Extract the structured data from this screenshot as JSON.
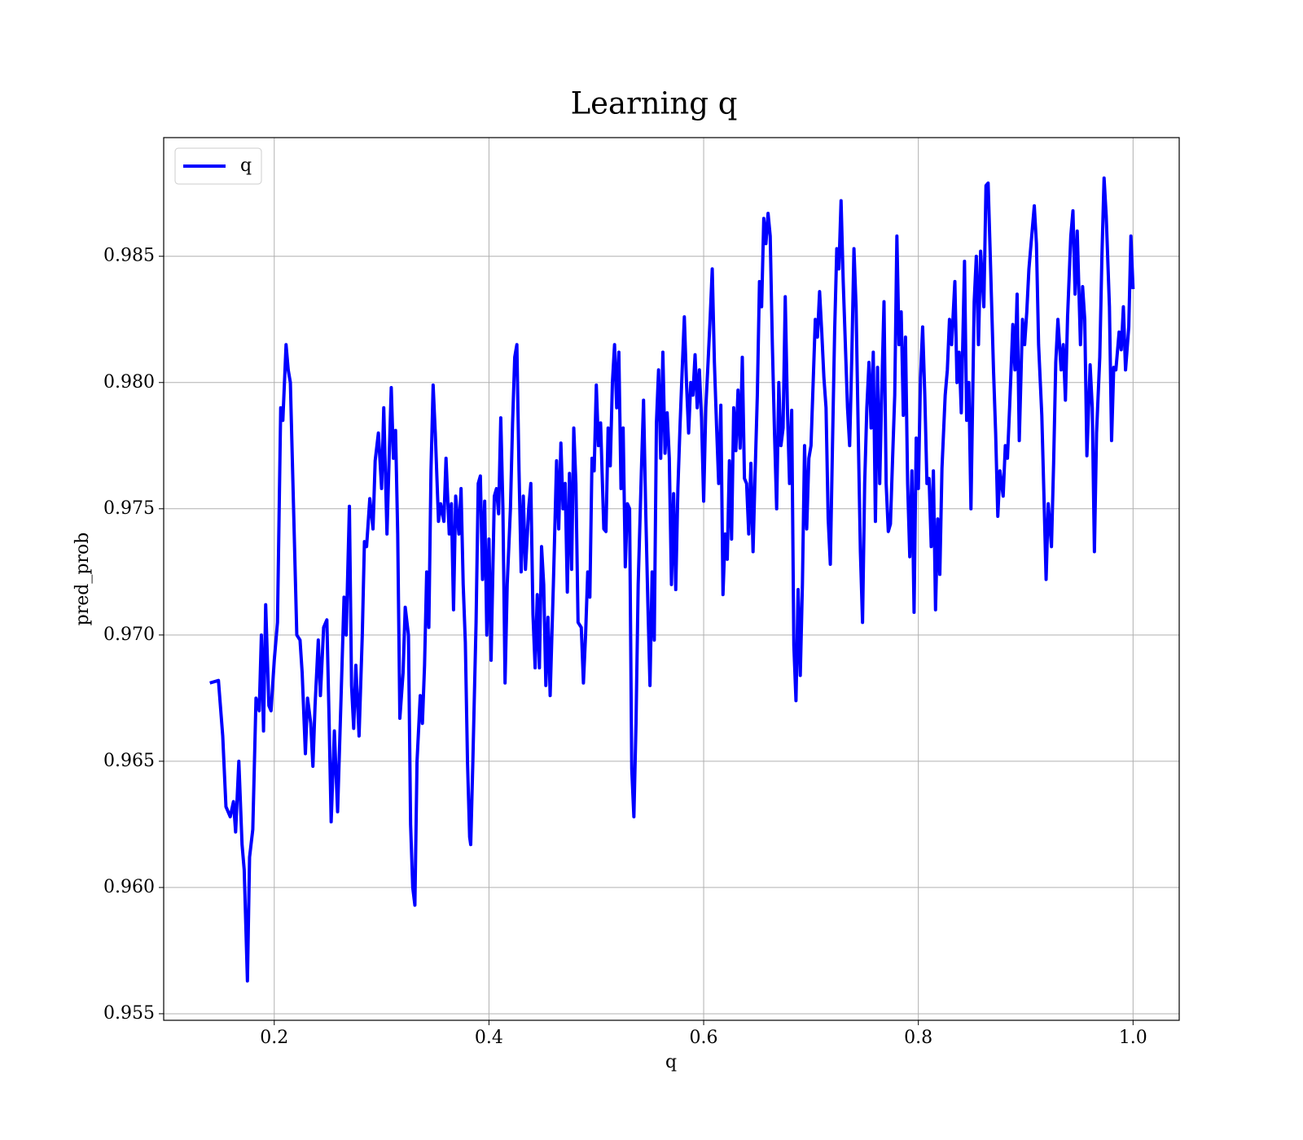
{
  "chart_data": {
    "type": "line",
    "title": "Learning q",
    "xlabel": "q",
    "ylabel": "pred_prob",
    "x": [
      0.14,
      0.148,
      0.152,
      0.155,
      0.159,
      0.162,
      0.164,
      0.167,
      0.17,
      0.172,
      0.175,
      0.177,
      0.18,
      0.183,
      0.186,
      0.188,
      0.19,
      0.192,
      0.195,
      0.197,
      0.2,
      0.203,
      0.206,
      0.208,
      0.211,
      0.213,
      0.215,
      0.218,
      0.221,
      0.224,
      0.226,
      0.229,
      0.231,
      0.234,
      0.236,
      0.238,
      0.241,
      0.243,
      0.246,
      0.249,
      0.251,
      0.253,
      0.256,
      0.259,
      0.262,
      0.265,
      0.267,
      0.27,
      0.272,
      0.274,
      0.276,
      0.279,
      0.282,
      0.284,
      0.286,
      0.289,
      0.292,
      0.294,
      0.297,
      0.3,
      0.302,
      0.305,
      0.307,
      0.309,
      0.311,
      0.313,
      0.315,
      0.317,
      0.32,
      0.322,
      0.325,
      0.327,
      0.329,
      0.331,
      0.333,
      0.336,
      0.338,
      0.34,
      0.342,
      0.344,
      0.346,
      0.348,
      0.35,
      0.353,
      0.355,
      0.358,
      0.36,
      0.363,
      0.365,
      0.367,
      0.369,
      0.372,
      0.374,
      0.376,
      0.378,
      0.38,
      0.382,
      0.383,
      0.385,
      0.388,
      0.39,
      0.392,
      0.394,
      0.396,
      0.398,
      0.4,
      0.402,
      0.405,
      0.407,
      0.409,
      0.411,
      0.413,
      0.415,
      0.417,
      0.42,
      0.422,
      0.424,
      0.426,
      0.428,
      0.43,
      0.432,
      0.434,
      0.437,
      0.439,
      0.441,
      0.443,
      0.445,
      0.447,
      0.449,
      0.451,
      0.453,
      0.455,
      0.457,
      0.46,
      0.463,
      0.465,
      0.467,
      0.469,
      0.471,
      0.473,
      0.475,
      0.477,
      0.479,
      0.481,
      0.483,
      0.486,
      0.488,
      0.49,
      0.492,
      0.494,
      0.496,
      0.498,
      0.5,
      0.502,
      0.504,
      0.507,
      0.509,
      0.511,
      0.513,
      0.515,
      0.517,
      0.519,
      0.521,
      0.523,
      0.525,
      0.527,
      0.529,
      0.531,
      0.533,
      0.535,
      0.537,
      0.539,
      0.542,
      0.544,
      0.546,
      0.548,
      0.55,
      0.552,
      0.554,
      0.556,
      0.558,
      0.56,
      0.562,
      0.564,
      0.566,
      0.568,
      0.57,
      0.572,
      0.574,
      0.576,
      0.578,
      0.58,
      0.582,
      0.584,
      0.586,
      0.588,
      0.59,
      0.592,
      0.594,
      0.596,
      0.598,
      0.6,
      0.602,
      0.604,
      0.606,
      0.608,
      0.61,
      0.612,
      0.614,
      0.616,
      0.618,
      0.62,
      0.622,
      0.624,
      0.626,
      0.628,
      0.63,
      0.632,
      0.634,
      0.636,
      0.638,
      0.64,
      0.642,
      0.644,
      0.646,
      0.648,
      0.65,
      0.652,
      0.654,
      0.656,
      0.658,
      0.66,
      0.662,
      0.664,
      0.666,
      0.668,
      0.67,
      0.672,
      0.674,
      0.676,
      0.678,
      0.68,
      0.682,
      0.684,
      0.686,
      0.688,
      0.69,
      0.692,
      0.694,
      0.696,
      0.698,
      0.7,
      0.702,
      0.704,
      0.706,
      0.708,
      0.71,
      0.712,
      0.714,
      0.716,
      0.718,
      0.72,
      0.722,
      0.724,
      0.726,
      0.728,
      0.73,
      0.732,
      0.734,
      0.736,
      0.738,
      0.74,
      0.742,
      0.744,
      0.746,
      0.748,
      0.75,
      0.752,
      0.754,
      0.756,
      0.758,
      0.76,
      0.762,
      0.764,
      0.766,
      0.768,
      0.77,
      0.772,
      0.774,
      0.776,
      0.778,
      0.78,
      0.782,
      0.784,
      0.786,
      0.788,
      0.79,
      0.792,
      0.794,
      0.796,
      0.798,
      0.8,
      0.802,
      0.804,
      0.806,
      0.808,
      0.81,
      0.812,
      0.814,
      0.816,
      0.818,
      0.82,
      0.822,
      0.825,
      0.827,
      0.829,
      0.831,
      0.834,
      0.836,
      0.838,
      0.84,
      0.843,
      0.845,
      0.847,
      0.849,
      0.852,
      0.854,
      0.856,
      0.858,
      0.861,
      0.863,
      0.865,
      0.867,
      0.87,
      0.872,
      0.874,
      0.876,
      0.879,
      0.881,
      0.883,
      0.885,
      0.888,
      0.89,
      0.892,
      0.894,
      0.897,
      0.899,
      0.901,
      0.903,
      0.906,
      0.908,
      0.91,
      0.912,
      0.915,
      0.917,
      0.919,
      0.921,
      0.924,
      0.926,
      0.928,
      0.93,
      0.933,
      0.935,
      0.937,
      0.939,
      0.942,
      0.944,
      0.946,
      0.948,
      0.951,
      0.953,
      0.955,
      0.957,
      0.96,
      0.962,
      0.964,
      0.966,
      0.969,
      0.971,
      0.973,
      0.975,
      0.978,
      0.98,
      0.982,
      0.984,
      0.987,
      0.989,
      0.991,
      0.993,
      0.996,
      0.998,
      1.0
    ],
    "series": [
      {
        "name": "q",
        "color": "#0000ff",
        "values": [
          0.9681,
          0.9682,
          0.966,
          0.9632,
          0.9628,
          0.9634,
          0.9622,
          0.965,
          0.9617,
          0.9607,
          0.9563,
          0.9612,
          0.9623,
          0.9675,
          0.967,
          0.97,
          0.9662,
          0.9712,
          0.9672,
          0.967,
          0.969,
          0.9705,
          0.979,
          0.9785,
          0.9815,
          0.9805,
          0.98,
          0.975,
          0.97,
          0.9698,
          0.9685,
          0.9653,
          0.9675,
          0.9665,
          0.9648,
          0.9672,
          0.9698,
          0.9676,
          0.9703,
          0.9706,
          0.9668,
          0.9626,
          0.9662,
          0.963,
          0.9672,
          0.9715,
          0.97,
          0.9751,
          0.968,
          0.9663,
          0.9688,
          0.966,
          0.97,
          0.9737,
          0.9735,
          0.9754,
          0.9742,
          0.9769,
          0.978,
          0.9758,
          0.979,
          0.974,
          0.977,
          0.9798,
          0.977,
          0.9781,
          0.974,
          0.9667,
          0.9685,
          0.9711,
          0.97,
          0.9625,
          0.96,
          0.9593,
          0.965,
          0.9676,
          0.9665,
          0.9688,
          0.9725,
          0.9703,
          0.9765,
          0.9799,
          0.978,
          0.9745,
          0.9752,
          0.9745,
          0.977,
          0.974,
          0.9752,
          0.971,
          0.9755,
          0.974,
          0.9758,
          0.972,
          0.9697,
          0.965,
          0.962,
          0.9617,
          0.965,
          0.9705,
          0.976,
          0.9763,
          0.9722,
          0.9753,
          0.97,
          0.9738,
          0.969,
          0.9755,
          0.9758,
          0.9748,
          0.9786,
          0.975,
          0.9681,
          0.972,
          0.975,
          0.9784,
          0.981,
          0.9815,
          0.9765,
          0.9725,
          0.9755,
          0.9726,
          0.975,
          0.976,
          0.9708,
          0.9687,
          0.9716,
          0.9687,
          0.9735,
          0.972,
          0.968,
          0.9707,
          0.9676,
          0.972,
          0.9769,
          0.9742,
          0.9776,
          0.975,
          0.976,
          0.9717,
          0.9764,
          0.9726,
          0.9782,
          0.976,
          0.9705,
          0.9703,
          0.9681,
          0.97,
          0.9725,
          0.9715,
          0.977,
          0.9765,
          0.9799,
          0.9775,
          0.9784,
          0.9742,
          0.9741,
          0.9782,
          0.9767,
          0.98,
          0.9815,
          0.979,
          0.9812,
          0.9758,
          0.9782,
          0.9727,
          0.9752,
          0.975,
          0.9647,
          0.9628,
          0.9665,
          0.972,
          0.9765,
          0.9793,
          0.975,
          0.9713,
          0.968,
          0.9725,
          0.9698,
          0.9784,
          0.9805,
          0.977,
          0.9812,
          0.9772,
          0.9788,
          0.977,
          0.972,
          0.9756,
          0.9718,
          0.9758,
          0.9783,
          0.9805,
          0.9826,
          0.98,
          0.978,
          0.98,
          0.9795,
          0.9811,
          0.979,
          0.9805,
          0.9786,
          0.9753,
          0.979,
          0.9807,
          0.9825,
          0.9845,
          0.9808,
          0.9783,
          0.976,
          0.9791,
          0.9716,
          0.974,
          0.973,
          0.9769,
          0.9738,
          0.979,
          0.9773,
          0.9797,
          0.9774,
          0.981,
          0.9762,
          0.976,
          0.974,
          0.9768,
          0.9733,
          0.9765,
          0.9795,
          0.984,
          0.983,
          0.9865,
          0.9855,
          0.9867,
          0.9858,
          0.9815,
          0.978,
          0.975,
          0.98,
          0.9775,
          0.9782,
          0.9834,
          0.979,
          0.976,
          0.9789,
          0.9696,
          0.9674,
          0.9718,
          0.9684,
          0.972,
          0.9775,
          0.9742,
          0.977,
          0.9775,
          0.98,
          0.9825,
          0.9818,
          0.9836,
          0.982,
          0.9802,
          0.979,
          0.9746,
          0.9728,
          0.9775,
          0.982,
          0.9853,
          0.9845,
          0.9872,
          0.984,
          0.9815,
          0.979,
          0.9775,
          0.981,
          0.9853,
          0.983,
          0.978,
          0.9733,
          0.9705,
          0.976,
          0.979,
          0.9808,
          0.9782,
          0.9812,
          0.9745,
          0.9806,
          0.976,
          0.9798,
          0.9832,
          0.976,
          0.9741,
          0.9744,
          0.977,
          0.9795,
          0.9858,
          0.9815,
          0.9828,
          0.9787,
          0.9818,
          0.976,
          0.9731,
          0.9765,
          0.9709,
          0.9778,
          0.9758,
          0.9802,
          0.9822,
          0.9795,
          0.976,
          0.9762,
          0.9735,
          0.9765,
          0.971,
          0.9746,
          0.9724,
          0.9766,
          0.9795,
          0.9805,
          0.9825,
          0.9815,
          0.984,
          0.98,
          0.9812,
          0.9788,
          0.9848,
          0.9785,
          0.98,
          0.975,
          0.9832,
          0.985,
          0.9815,
          0.9852,
          0.983,
          0.9878,
          0.9879,
          0.985,
          0.9805,
          0.978,
          0.9747,
          0.9765,
          0.9755,
          0.9775,
          0.977,
          0.979,
          0.9823,
          0.9805,
          0.9835,
          0.9777,
          0.9825,
          0.9815,
          0.9828,
          0.9845,
          0.986,
          0.987,
          0.9855,
          0.9815,
          0.9787,
          0.9755,
          0.9722,
          0.9752,
          0.9735,
          0.9768,
          0.9808,
          0.9825,
          0.9805,
          0.9815,
          0.9793,
          0.9826,
          0.9858,
          0.9868,
          0.9835,
          0.986,
          0.9815,
          0.9838,
          0.9825,
          0.9771,
          0.9807,
          0.979,
          0.9733,
          0.978,
          0.981,
          0.985,
          0.9881,
          0.9866,
          0.983,
          0.9777,
          0.9806,
          0.9805,
          0.982,
          0.9813,
          0.983,
          0.9805,
          0.9822,
          0.9858,
          0.9837
        ]
      }
    ],
    "xlim": [
      0.097,
      1.043
    ],
    "ylim": [
      0.95474,
      0.9897
    ],
    "xticks": [
      0.2,
      0.4,
      0.6,
      0.8,
      {
        "value": 1.0,
        "label": "1.0"
      }
    ],
    "yticks": [
      0.955,
      {
        "value": 0.96,
        "label": "0.960"
      },
      0.965,
      {
        "value": 0.97,
        "label": "0.970"
      },
      0.975,
      {
        "value": 0.98,
        "label": "0.980"
      },
      0.985
    ],
    "grid": true,
    "legend": "upper left"
  }
}
